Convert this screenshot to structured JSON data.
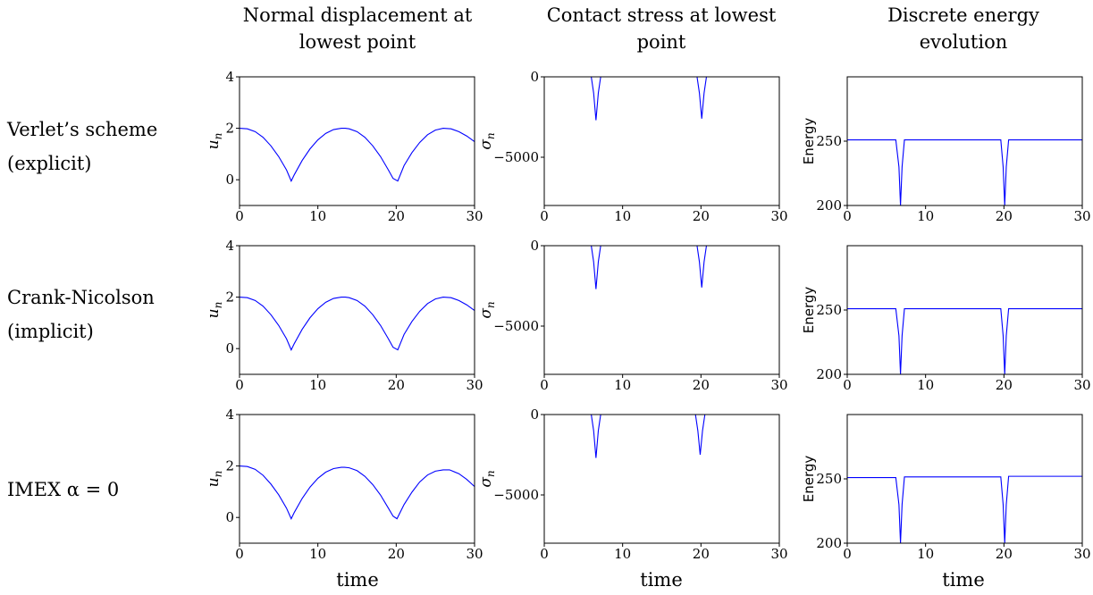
{
  "figure": {
    "column_titles": [
      [
        "Normal displacement at",
        "lowest point"
      ],
      [
        "Contact stress at lowest",
        "point"
      ],
      [
        "Discrete energy",
        "evolution"
      ]
    ],
    "row_labels": [
      [
        "Verlet’s scheme",
        "(explicit)"
      ],
      [
        "Crank-Nicolson",
        "(implicit)"
      ],
      [
        "IMEX α = 0"
      ]
    ],
    "xlabel": "time",
    "line_color": "#0000ff"
  },
  "chart_data": [
    {
      "type": "line",
      "row": 0,
      "col": 0,
      "xlabel": "",
      "ylabel": "u_n",
      "xlim": [
        0,
        30
      ],
      "ylim": [
        -1,
        4
      ],
      "xticks": [
        0,
        10,
        20,
        30
      ],
      "yticks": [
        0,
        2,
        4
      ],
      "ytick_labels": [
        "0",
        "2",
        "4"
      ],
      "series": [
        {
          "x": [
            0,
            1,
            2,
            3,
            4,
            5,
            6,
            6.6,
            7,
            8,
            9,
            10,
            11,
            12,
            13,
            13.5,
            14,
            15,
            16,
            17,
            18,
            19,
            19.6,
            20.2,
            21,
            22,
            23,
            24,
            25,
            26,
            27,
            28,
            29,
            30
          ],
          "y": [
            2,
            1.98,
            1.87,
            1.65,
            1.32,
            0.9,
            0.38,
            -0.05,
            0.2,
            0.75,
            1.2,
            1.55,
            1.8,
            1.95,
            2,
            2,
            1.98,
            1.87,
            1.65,
            1.32,
            0.9,
            0.38,
            0.05,
            -0.05,
            0.55,
            1.05,
            1.45,
            1.75,
            1.93,
            2,
            1.98,
            1.87,
            1.7,
            1.48
          ]
        }
      ]
    },
    {
      "type": "line",
      "row": 0,
      "col": 1,
      "xlabel": "",
      "ylabel": "σ_n",
      "xlim": [
        0,
        30
      ],
      "ylim": [
        -8000,
        0
      ],
      "xticks": [
        0,
        10,
        20,
        30
      ],
      "yticks": [
        0,
        -5000
      ],
      "ytick_labels": [
        "0",
        "−5000"
      ],
      "series": [
        {
          "x": [
            0,
            6.0,
            6.3,
            6.6,
            6.9,
            7.2,
            19.5,
            19.8,
            20.1,
            20.4,
            20.7,
            30
          ],
          "y": [
            0,
            0,
            -1000,
            -2700,
            -1000,
            0,
            0,
            -1000,
            -2600,
            -1000,
            0,
            0
          ]
        }
      ]
    },
    {
      "type": "line",
      "row": 0,
      "col": 2,
      "xlabel": "",
      "ylabel": "Energy",
      "xlim": [
        0,
        30
      ],
      "ylim": [
        200,
        300
      ],
      "xticks": [
        0,
        10,
        20,
        30
      ],
      "yticks": [
        200,
        250
      ],
      "ytick_labels": [
        "200",
        "250"
      ],
      "series": [
        {
          "x": [
            0,
            6.2,
            6.6,
            6.8,
            7.0,
            7.3,
            19.6,
            19.9,
            20.1,
            20.3,
            20.6,
            30
          ],
          "y": [
            251,
            251,
            230,
            200,
            230,
            251,
            251,
            230,
            200,
            230,
            251,
            251
          ]
        }
      ]
    },
    {
      "type": "line",
      "row": 1,
      "col": 0,
      "xlabel": "",
      "ylabel": "u_n",
      "xlim": [
        0,
        30
      ],
      "ylim": [
        -1,
        4
      ],
      "xticks": [
        0,
        10,
        20,
        30
      ],
      "yticks": [
        0,
        2,
        4
      ],
      "ytick_labels": [
        "0",
        "2",
        "4"
      ],
      "series": [
        {
          "x": [
            0,
            1,
            2,
            3,
            4,
            5,
            6,
            6.6,
            7,
            8,
            9,
            10,
            11,
            12,
            13,
            13.5,
            14,
            15,
            16,
            17,
            18,
            19,
            19.6,
            20.2,
            21,
            22,
            23,
            24,
            25,
            26,
            27,
            28,
            29,
            30
          ],
          "y": [
            2,
            1.98,
            1.87,
            1.65,
            1.32,
            0.9,
            0.38,
            -0.05,
            0.2,
            0.75,
            1.2,
            1.55,
            1.8,
            1.95,
            2,
            2,
            1.98,
            1.87,
            1.65,
            1.32,
            0.9,
            0.38,
            0.05,
            -0.05,
            0.55,
            1.05,
            1.45,
            1.75,
            1.93,
            2,
            1.98,
            1.87,
            1.7,
            1.48
          ]
        }
      ]
    },
    {
      "type": "line",
      "row": 1,
      "col": 1,
      "xlabel": "",
      "ylabel": "σ_n",
      "xlim": [
        0,
        30
      ],
      "ylim": [
        -8000,
        0
      ],
      "xticks": [
        0,
        10,
        20,
        30
      ],
      "yticks": [
        0,
        -5000
      ],
      "ytick_labels": [
        "0",
        "−5000"
      ],
      "series": [
        {
          "x": [
            0,
            6.0,
            6.3,
            6.6,
            6.9,
            7.2,
            19.5,
            19.8,
            20.1,
            20.4,
            20.7,
            30
          ],
          "y": [
            0,
            0,
            -1000,
            -2700,
            -1000,
            0,
            0,
            -1000,
            -2600,
            -1000,
            0,
            0
          ]
        }
      ]
    },
    {
      "type": "line",
      "row": 1,
      "col": 2,
      "xlabel": "",
      "ylabel": "Energy",
      "xlim": [
        0,
        30
      ],
      "ylim": [
        200,
        300
      ],
      "xticks": [
        0,
        10,
        20,
        30
      ],
      "yticks": [
        200,
        250
      ],
      "ytick_labels": [
        "200",
        "250"
      ],
      "series": [
        {
          "x": [
            0,
            6.2,
            6.6,
            6.8,
            7.0,
            7.3,
            19.6,
            19.9,
            20.1,
            20.3,
            20.6,
            30
          ],
          "y": [
            251,
            251,
            230,
            200,
            230,
            251,
            251,
            230,
            200,
            230,
            251,
            251
          ]
        }
      ]
    },
    {
      "type": "line",
      "row": 2,
      "col": 0,
      "xlabel": "time",
      "ylabel": "u_n",
      "xlim": [
        0,
        30
      ],
      "ylim": [
        -1,
        4
      ],
      "xticks": [
        0,
        10,
        20,
        30
      ],
      "yticks": [
        0,
        2,
        4
      ],
      "ytick_labels": [
        "0",
        "2",
        "4"
      ],
      "series": [
        {
          "x": [
            0,
            1,
            2,
            3,
            4,
            5,
            6,
            6.6,
            7,
            8,
            9,
            10,
            11,
            12,
            13,
            13.4,
            14,
            15,
            16,
            17,
            18,
            19,
            19.6,
            20.1,
            21,
            22,
            23,
            24,
            25,
            26,
            26.8,
            28,
            29,
            30
          ],
          "y": [
            2,
            1.98,
            1.87,
            1.64,
            1.3,
            0.88,
            0.36,
            -0.05,
            0.2,
            0.74,
            1.18,
            1.52,
            1.76,
            1.9,
            1.95,
            1.95,
            1.93,
            1.82,
            1.6,
            1.28,
            0.87,
            0.36,
            0.05,
            -0.05,
            0.5,
            0.98,
            1.38,
            1.65,
            1.8,
            1.85,
            1.85,
            1.7,
            1.48,
            1.2
          ]
        }
      ]
    },
    {
      "type": "line",
      "row": 2,
      "col": 1,
      "xlabel": "time",
      "ylabel": "σ_n",
      "xlim": [
        0,
        30
      ],
      "ylim": [
        -8000,
        0
      ],
      "xticks": [
        0,
        10,
        20,
        30
      ],
      "yticks": [
        0,
        -5000
      ],
      "ytick_labels": [
        "0",
        "−5000"
      ],
      "series": [
        {
          "x": [
            0,
            6.0,
            6.3,
            6.6,
            6.9,
            7.2,
            19.3,
            19.6,
            19.9,
            20.2,
            20.5,
            30
          ],
          "y": [
            0,
            0,
            -1000,
            -2700,
            -1000,
            0,
            0,
            -1000,
            -2500,
            -1000,
            0,
            0
          ]
        }
      ]
    },
    {
      "type": "line",
      "row": 2,
      "col": 2,
      "xlabel": "time",
      "ylabel": "Energy",
      "xlim": [
        0,
        30
      ],
      "ylim": [
        200,
        300
      ],
      "xticks": [
        0,
        10,
        20,
        30
      ],
      "yticks": [
        200,
        250
      ],
      "ytick_labels": [
        "200",
        "250"
      ],
      "series": [
        {
          "x": [
            0,
            6.2,
            6.6,
            6.8,
            7.0,
            7.3,
            10,
            15,
            19.6,
            19.9,
            20.1,
            20.3,
            20.6,
            25,
            30
          ],
          "y": [
            251,
            251,
            230,
            200,
            230,
            251.5,
            251.5,
            251.5,
            251.5,
            230,
            200,
            230,
            252,
            252,
            252
          ]
        }
      ]
    }
  ]
}
